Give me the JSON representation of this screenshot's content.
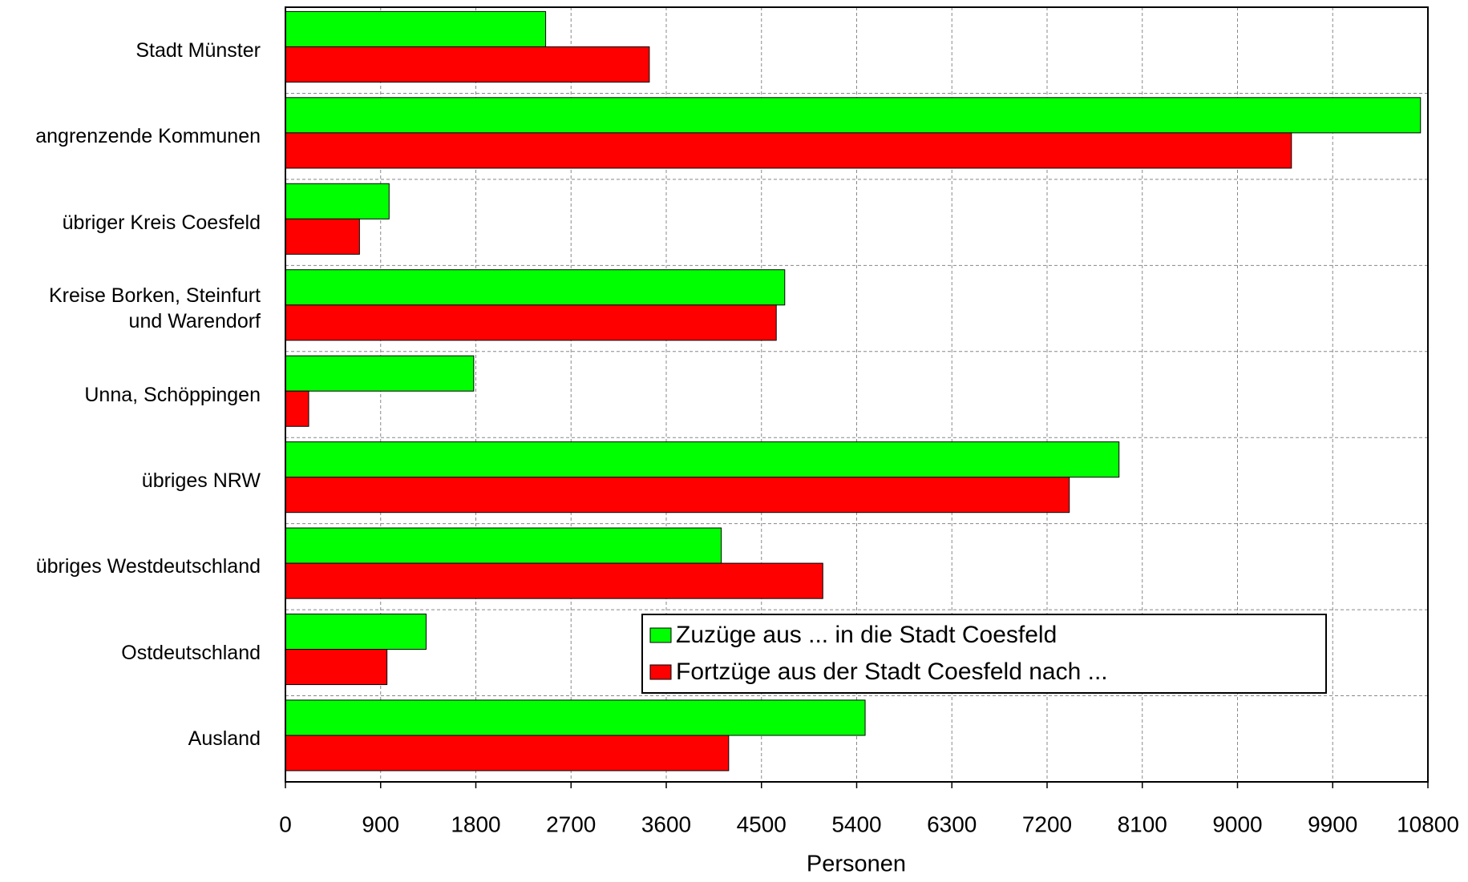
{
  "chart_data": {
    "type": "hbar",
    "xlabel": "Personen",
    "categories": [
      "Stadt Münster",
      "angrenzende Kommunen",
      "übriger Kreis Coesfeld",
      "Kreise Borken, Steinfurt\nund Warendorf",
      "Unna, Schöppingen",
      "übriges NRW",
      "übriges Westdeutschland",
      "Ostdeutschland",
      "Ausland"
    ],
    "series": [
      {
        "name": "Zuzüge aus ... in die Stadt Coesfeld",
        "color": "#00ff00",
        "values": [
          2460,
          10730,
          980,
          4720,
          1780,
          7880,
          4120,
          1330,
          5480
        ]
      },
      {
        "name": "Fortzüge aus der Stadt Coesfeld nach ...",
        "color": "#ff0000",
        "values": [
          3440,
          9510,
          700,
          4640,
          220,
          7410,
          5080,
          960,
          4190
        ]
      }
    ],
    "xlim": [
      0,
      10800
    ],
    "xticks": [
      0,
      900,
      1800,
      2700,
      3600,
      4500,
      5400,
      6300,
      7200,
      8100,
      9000,
      9900,
      10800
    ],
    "grid": true,
    "legend_position": "lower right"
  }
}
